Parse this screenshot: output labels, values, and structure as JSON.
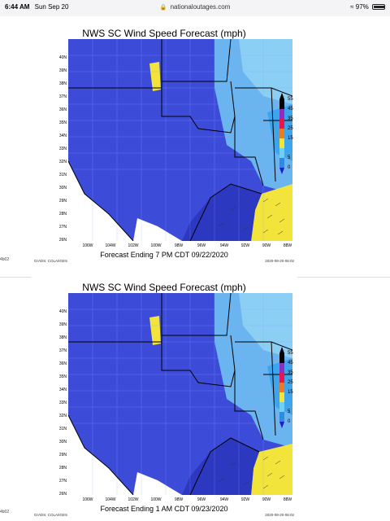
{
  "status_bar": {
    "time": "6:44 AM",
    "date": "Sun Sep 20",
    "url": "nationaloutages.com",
    "battery": "97%"
  },
  "sidebar_labels": [
    "4b02",
    "4b02"
  ],
  "panels": [
    {
      "title": "NWS SC Wind Speed Forecast (mph)",
      "caption": "Forecast Ending 7 PM CDT 09/22/2020",
      "footer_left": "GrADS: COLA/IGES",
      "footer_right": "2020-09-20-06:02"
    },
    {
      "title": "NWS SC Wind Speed Forecast (mph)",
      "caption": "Forecast Ending 1 AM CDT 09/23/2020",
      "footer_left": "GrADS: COLA/IGES",
      "footer_right": "2020-09-20-06:02"
    }
  ],
  "lat_labels": [
    "40N",
    "39N",
    "38N",
    "37N",
    "36N",
    "35N",
    "34N",
    "33N",
    "32N",
    "31N",
    "30N",
    "29N",
    "28N",
    "27N",
    "26N"
  ],
  "lon_labels": [
    "106W",
    "104W",
    "102W",
    "100W",
    "98W",
    "96W",
    "94W",
    "92W",
    "90W",
    "88W"
  ],
  "legend": {
    "labels": [
      "55",
      "45",
      "35",
      "25",
      "15",
      "5",
      "0"
    ],
    "colors": [
      "#000000",
      "#8e2fbf",
      "#e8154f",
      "#f07a20",
      "#f2e43a",
      "#6fd0f0",
      "#2f8ae0",
      "#1c1cc8"
    ]
  }
}
